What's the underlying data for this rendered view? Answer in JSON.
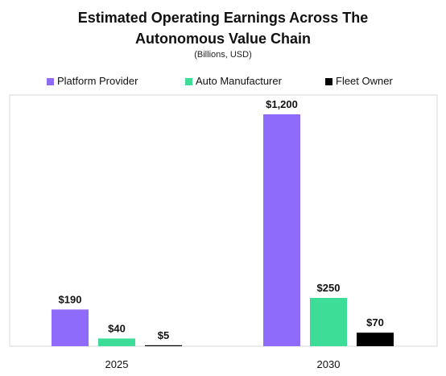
{
  "title_line1": "Estimated Operating Earnings Across The",
  "title_line2": "Autonomous Value Chain",
  "subtitle": "(Billions, USD)",
  "colors": {
    "platform": "#8e6bfa",
    "auto": "#3ddc97",
    "fleet": "#000000",
    "frame": "#d9d9d9"
  },
  "chart_data": {
    "type": "bar",
    "title": "Estimated Operating Earnings Across The Autonomous Value Chain",
    "subtitle": "(Billions, USD)",
    "categories": [
      "2025",
      "2030"
    ],
    "series": [
      {
        "name": "Platform Provider",
        "values": [
          190,
          1200
        ],
        "labels": [
          "$190",
          "$1,200"
        ]
      },
      {
        "name": "Auto Manufacturer",
        "values": [
          40,
          250
        ],
        "labels": [
          "$40",
          "$250"
        ]
      },
      {
        "name": "Fleet Owner",
        "values": [
          5,
          70
        ],
        "labels": [
          "$5",
          "$70"
        ]
      }
    ],
    "ylim": [
      0,
      1300
    ],
    "legend": "top",
    "grid": false
  }
}
